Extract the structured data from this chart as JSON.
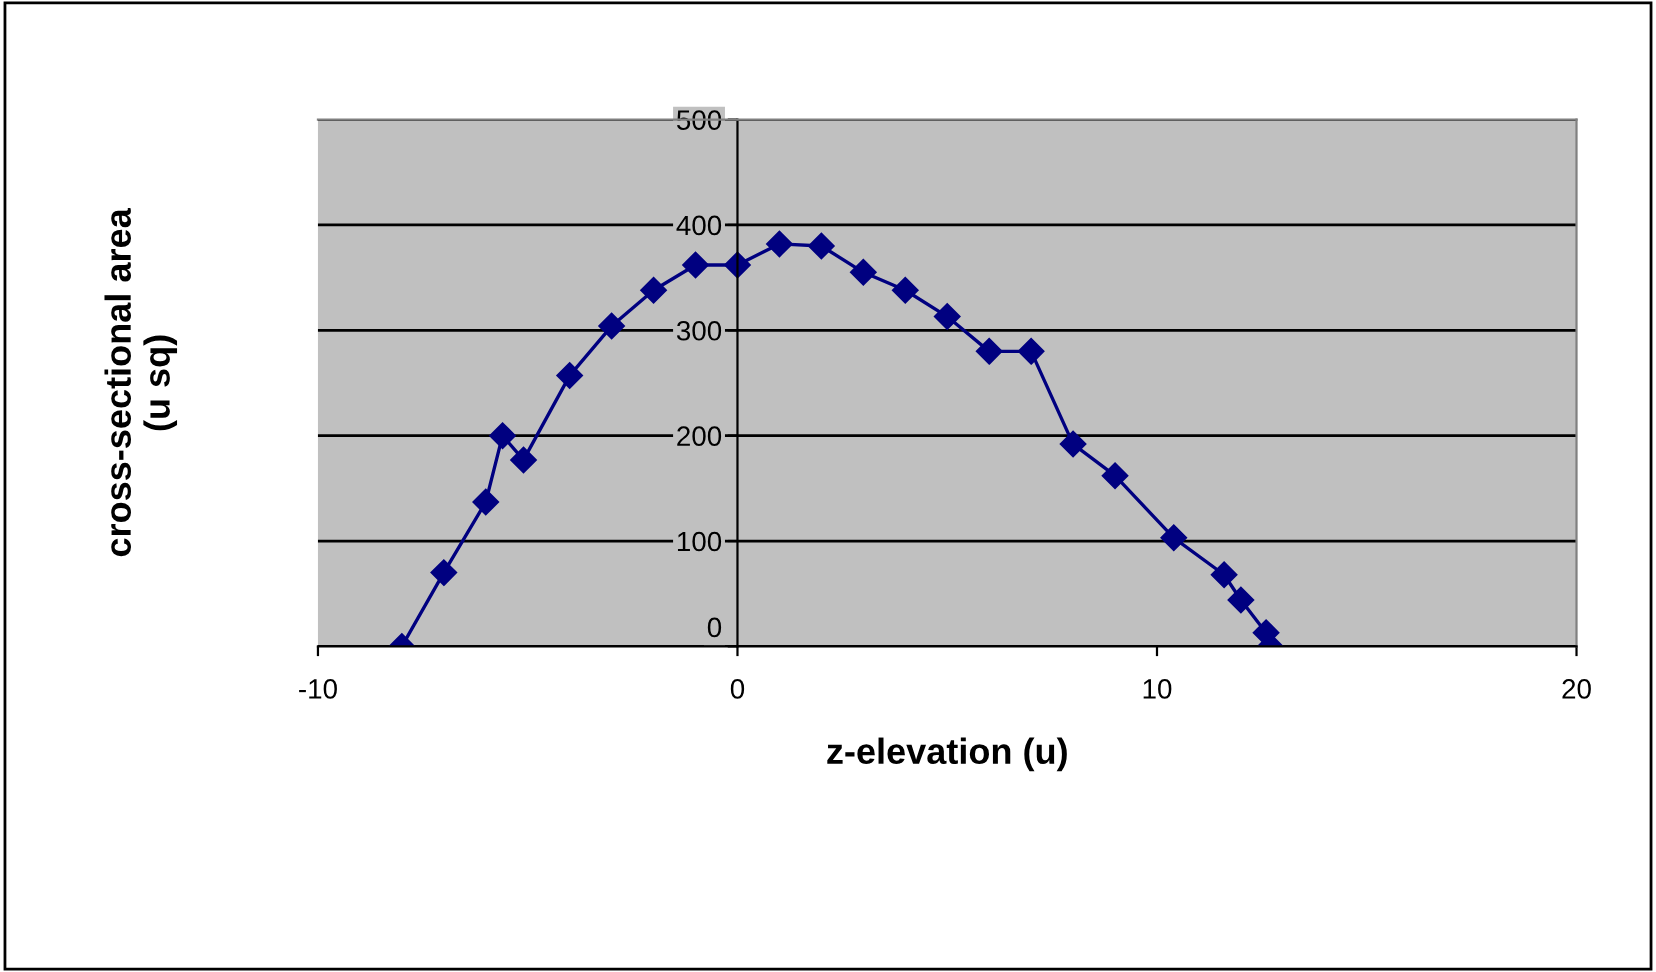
{
  "chart_data": {
    "type": "line",
    "xlabel": "z-elevation (u)",
    "ylabel": "cross-sectional area\n(u sq)",
    "x": [
      -8,
      -7,
      -6,
      -5.6,
      -5.1,
      -4,
      -3,
      -2,
      -1,
      0,
      1,
      2,
      3,
      4,
      5,
      6,
      7,
      8,
      9,
      10.4,
      11.6,
      12,
      12.6,
      12.7
    ],
    "series": [
      {
        "color": "#000080",
        "values": [
          0,
          70,
          137,
          200,
          177,
          257,
          304,
          338,
          362,
          362,
          382,
          380,
          355,
          338,
          313,
          280,
          280,
          192,
          162,
          103,
          68,
          44,
          13,
          0
        ]
      }
    ],
    "xlim": [
      -10,
      20
    ],
    "xticks": [
      -10,
      0,
      10,
      20
    ],
    "ylim": [
      0,
      500
    ],
    "yticks": [
      0,
      100,
      200,
      300,
      400,
      500
    ],
    "grid": "y",
    "marker": "diamond",
    "line_style": "solid",
    "legend": false
  }
}
